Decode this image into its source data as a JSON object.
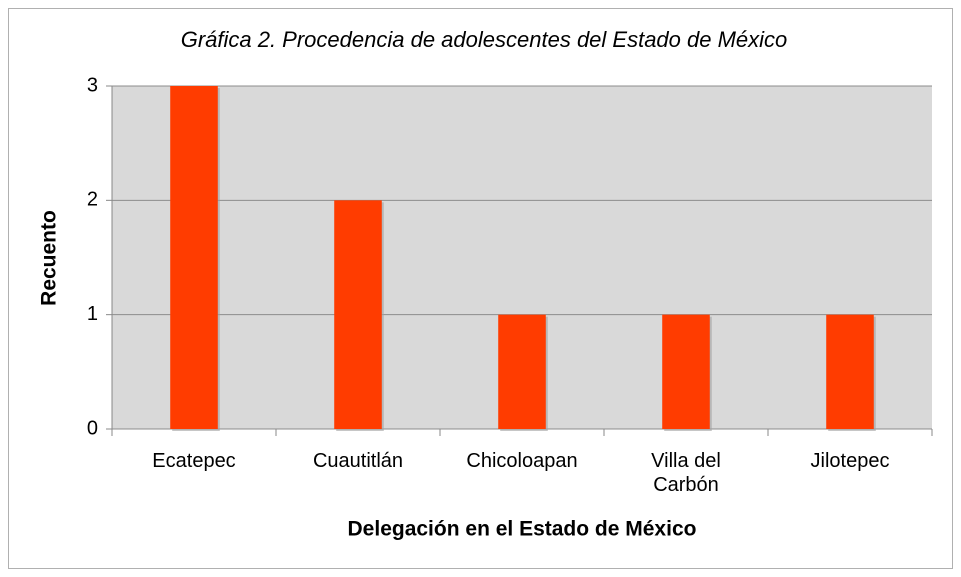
{
  "chart_data": {
    "type": "bar",
    "title": "Gráfica 2. Procedencia de adolescentes del Estado de México",
    "x_label": "Delegación en el Estado de México",
    "y_label": "Recuento",
    "categories": [
      "Ecatepec",
      "Cuautitlán",
      "Chicoloapan",
      "Villa del Carbón",
      "Jilotepec"
    ],
    "values": [
      3,
      2,
      1,
      1,
      1
    ],
    "color": "#ff3c00",
    "ylim": [
      0,
      3
    ],
    "yticks": [
      0,
      1,
      2,
      3
    ],
    "grid": true
  }
}
